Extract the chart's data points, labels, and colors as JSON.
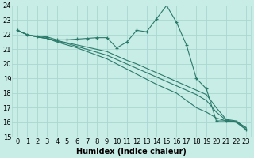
{
  "xlabel": "Humidex (Indice chaleur)",
  "xlim": [
    -0.5,
    23.5
  ],
  "ylim": [
    15,
    24
  ],
  "yticks": [
    15,
    16,
    17,
    18,
    19,
    20,
    21,
    22,
    23,
    24
  ],
  "xticks": [
    0,
    1,
    2,
    3,
    4,
    5,
    6,
    7,
    8,
    9,
    10,
    11,
    12,
    13,
    14,
    15,
    16,
    17,
    18,
    19,
    20,
    21,
    22,
    23
  ],
  "bg_color": "#c8ece6",
  "grid_color": "#a8d8d0",
  "line_color": "#2a7a6a",
  "zigzag": [
    22.3,
    22.0,
    21.9,
    21.85,
    21.65,
    21.65,
    21.7,
    21.75,
    21.8,
    21.8,
    21.1,
    21.5,
    22.3,
    22.2,
    23.1,
    24.0,
    22.85,
    21.3,
    19.0,
    18.3,
    16.1,
    16.1,
    16.05,
    15.5
  ],
  "straight_lines": [
    [
      22.3,
      22.0,
      21.85,
      21.75,
      21.6,
      21.45,
      21.3,
      21.15,
      21.0,
      20.85,
      20.55,
      20.25,
      20.0,
      19.7,
      19.4,
      19.1,
      18.8,
      18.5,
      18.2,
      17.9,
      17.0,
      16.2,
      16.1,
      15.6
    ],
    [
      22.3,
      22.0,
      21.85,
      21.75,
      21.55,
      21.4,
      21.2,
      21.0,
      20.8,
      20.6,
      20.3,
      20.0,
      19.7,
      19.4,
      19.1,
      18.8,
      18.5,
      18.2,
      17.9,
      17.5,
      16.7,
      16.15,
      16.05,
      15.65
    ],
    [
      22.3,
      22.0,
      21.85,
      21.75,
      21.5,
      21.3,
      21.1,
      20.85,
      20.6,
      20.35,
      20.0,
      19.65,
      19.3,
      18.95,
      18.6,
      18.3,
      18.0,
      17.5,
      17.0,
      16.7,
      16.3,
      16.1,
      16.0,
      15.5
    ]
  ],
  "font_size": 7
}
